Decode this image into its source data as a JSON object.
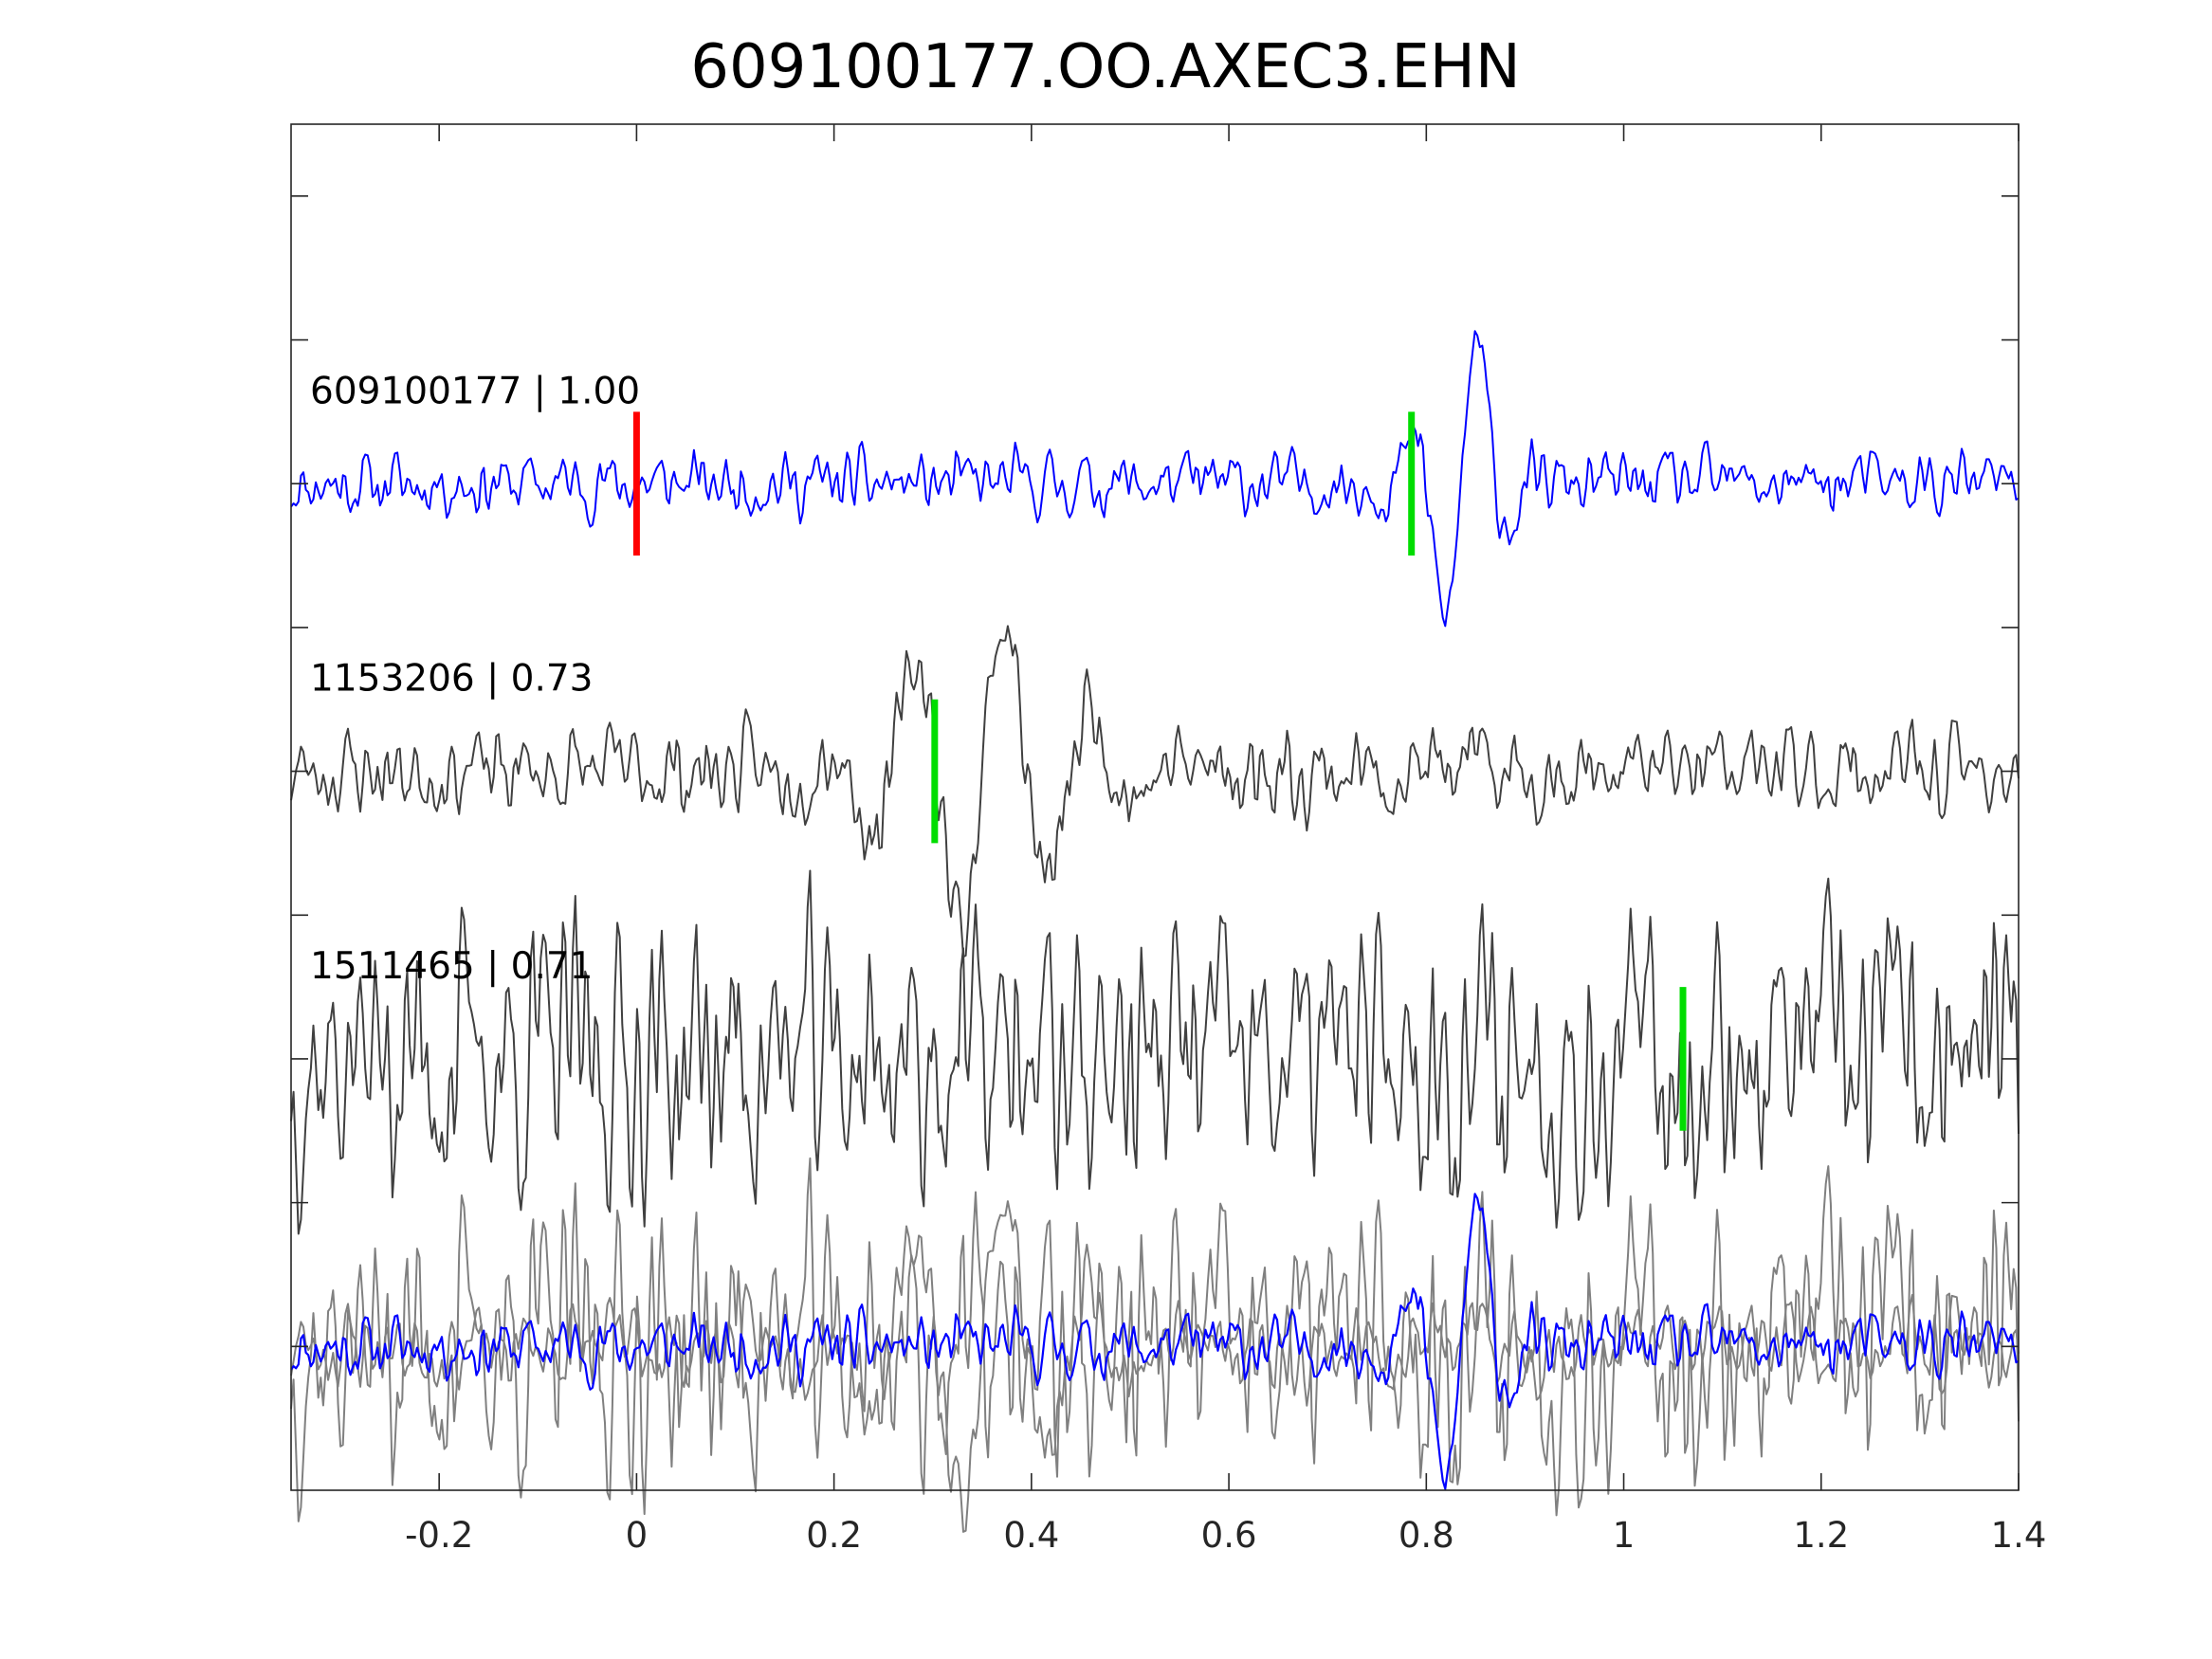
{
  "chart_data": {
    "type": "line",
    "title": "609100177.OO.AXEC3.EHN",
    "xlabel": "",
    "ylabel": "",
    "xlim": [
      -0.35,
      1.4
    ],
    "xticks": [
      -0.2,
      0,
      0.2,
      0.4,
      0.6,
      0.8,
      1,
      1.2,
      1.4
    ],
    "xtick_labels": [
      "-0.2",
      "0",
      "0.2",
      "0.4",
      "0.6",
      "0.8",
      "1",
      "1.2",
      "1.4"
    ],
    "ylim": [
      -0.5,
      4.25
    ],
    "yticks": [
      0,
      0.5,
      1,
      1.5,
      2,
      2.5,
      3,
      3.5,
      4
    ],
    "show_ytick_labels": false,
    "grid": false,
    "legend": "none",
    "panels": [
      {
        "label": "609100177 | 1.00",
        "offset": 3.0,
        "color": "#0000ff",
        "amplitude": 0.55,
        "noise": 0.05,
        "seed": 11,
        "wavelet": {
          "t0": 0.835,
          "freq": 14,
          "width": 0.03
        },
        "picks": [
          {
            "x": 0.0,
            "color": "#ff0000"
          },
          {
            "x": 0.785,
            "color": "#00dd00"
          }
        ]
      },
      {
        "label": "1153206 | 0.73",
        "offset": 2.0,
        "color": "#404040",
        "amplitude": 0.55,
        "noise": 0.07,
        "seed": 23,
        "wavelet": {
          "t0": 0.35,
          "freq": 11,
          "width": 0.08
        },
        "picks": [
          {
            "x": 0.302,
            "color": "#00dd00"
          }
        ]
      },
      {
        "label": "1511465 | 0.71",
        "offset": 1.0,
        "color": "#404040",
        "amplitude": 0.5,
        "noise": 0.22,
        "seed": 37,
        "wavelet": null,
        "picks": [
          {
            "x": 1.06,
            "color": "#00dd00"
          }
        ]
      }
    ],
    "overlay": {
      "offset": 0.0,
      "gray_color": "#808080",
      "blue_color": "#0000ff"
    },
    "colors": {
      "axis": "#262626",
      "pick_green": "#00dd00",
      "pick_red": "#ff0000"
    }
  }
}
